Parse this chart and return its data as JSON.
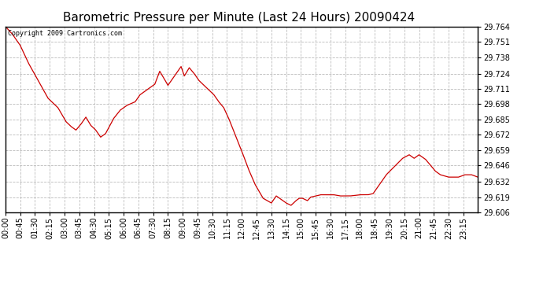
{
  "title": "Barometric Pressure per Minute (Last 24 Hours) 20090424",
  "copyright": "Copyright 2009 Cartronics.com",
  "line_color": "#cc0000",
  "bg_color": "#ffffff",
  "plot_bg_color": "#ffffff",
  "grid_color": "#bbbbbb",
  "y_min": 29.606,
  "y_max": 29.764,
  "y_ticks": [
    29.606,
    29.619,
    29.632,
    29.646,
    29.659,
    29.672,
    29.685,
    29.698,
    29.711,
    29.724,
    29.738,
    29.751,
    29.764
  ],
  "x_labels": [
    "00:00",
    "00:45",
    "01:30",
    "02:15",
    "03:00",
    "03:45",
    "04:30",
    "05:15",
    "06:00",
    "06:45",
    "07:30",
    "08:15",
    "09:00",
    "09:45",
    "10:30",
    "11:15",
    "12:00",
    "12:45",
    "13:30",
    "14:15",
    "15:00",
    "15:45",
    "16:30",
    "17:15",
    "18:00",
    "18:45",
    "19:30",
    "20:15",
    "21:00",
    "21:45",
    "22:30",
    "23:15"
  ],
  "title_fontsize": 11,
  "tick_fontsize": 7,
  "copyright_fontsize": 6,
  "keypoints": [
    [
      0,
      29.764
    ],
    [
      20,
      29.758
    ],
    [
      45,
      29.748
    ],
    [
      70,
      29.733
    ],
    [
      100,
      29.718
    ],
    [
      130,
      29.703
    ],
    [
      160,
      29.695
    ],
    [
      185,
      29.683
    ],
    [
      200,
      29.679
    ],
    [
      215,
      29.676
    ],
    [
      230,
      29.681
    ],
    [
      245,
      29.687
    ],
    [
      260,
      29.68
    ],
    [
      275,
      29.676
    ],
    [
      290,
      29.67
    ],
    [
      305,
      29.673
    ],
    [
      330,
      29.686
    ],
    [
      350,
      29.693
    ],
    [
      370,
      29.697
    ],
    [
      395,
      29.7
    ],
    [
      410,
      29.706
    ],
    [
      430,
      29.71
    ],
    [
      455,
      29.715
    ],
    [
      470,
      29.726
    ],
    [
      485,
      29.719
    ],
    [
      495,
      29.714
    ],
    [
      510,
      29.72
    ],
    [
      525,
      29.726
    ],
    [
      535,
      29.73
    ],
    [
      545,
      29.722
    ],
    [
      560,
      29.729
    ],
    [
      575,
      29.724
    ],
    [
      590,
      29.718
    ],
    [
      605,
      29.714
    ],
    [
      620,
      29.71
    ],
    [
      635,
      29.706
    ],
    [
      650,
      29.7
    ],
    [
      665,
      29.695
    ],
    [
      680,
      29.686
    ],
    [
      700,
      29.672
    ],
    [
      720,
      29.658
    ],
    [
      740,
      29.643
    ],
    [
      760,
      29.63
    ],
    [
      785,
      29.618
    ],
    [
      810,
      29.614
    ],
    [
      825,
      29.62
    ],
    [
      840,
      29.617
    ],
    [
      855,
      29.614
    ],
    [
      870,
      29.612
    ],
    [
      885,
      29.616
    ],
    [
      895,
      29.618
    ],
    [
      905,
      29.618
    ],
    [
      920,
      29.616
    ],
    [
      930,
      29.619
    ],
    [
      945,
      29.62
    ],
    [
      960,
      29.621
    ],
    [
      980,
      29.621
    ],
    [
      1000,
      29.621
    ],
    [
      1020,
      29.62
    ],
    [
      1050,
      29.62
    ],
    [
      1080,
      29.621
    ],
    [
      1105,
      29.621
    ],
    [
      1120,
      29.622
    ],
    [
      1135,
      29.628
    ],
    [
      1160,
      29.638
    ],
    [
      1185,
      29.645
    ],
    [
      1210,
      29.652
    ],
    [
      1230,
      29.655
    ],
    [
      1245,
      29.652
    ],
    [
      1260,
      29.655
    ],
    [
      1270,
      29.653
    ],
    [
      1280,
      29.651
    ],
    [
      1295,
      29.646
    ],
    [
      1310,
      29.641
    ],
    [
      1325,
      29.638
    ],
    [
      1350,
      29.636
    ],
    [
      1380,
      29.636
    ],
    [
      1400,
      29.638
    ],
    [
      1420,
      29.638
    ],
    [
      1439,
      29.636
    ]
  ]
}
